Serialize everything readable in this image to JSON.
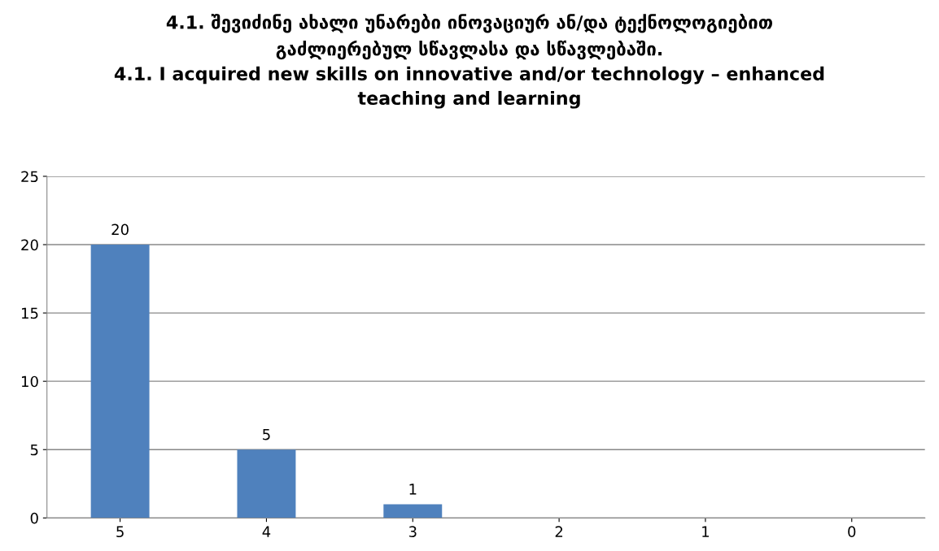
{
  "chart_data": {
    "type": "bar",
    "title": "4.1. შევიძინე ახალი უნარები ინოვაციურ ან/და ტექნოლოგიებით\nგაძლიერებულ სწავლასა და სწავლებაში.\n4.1. I acquired new skills on innovative and/or technology – enhanced\nteaching and learning",
    "categories": [
      "5",
      "4",
      "3",
      "2",
      "1",
      "0"
    ],
    "values": [
      20,
      5,
      1,
      0,
      0,
      0
    ],
    "value_labels": [
      "20",
      "5",
      "1",
      null,
      null,
      null
    ],
    "color": "#4f81bd",
    "ylim": [
      0,
      25
    ],
    "yticks": [
      0,
      5,
      10,
      15,
      20,
      25
    ],
    "grid": "y",
    "legend": false
  }
}
